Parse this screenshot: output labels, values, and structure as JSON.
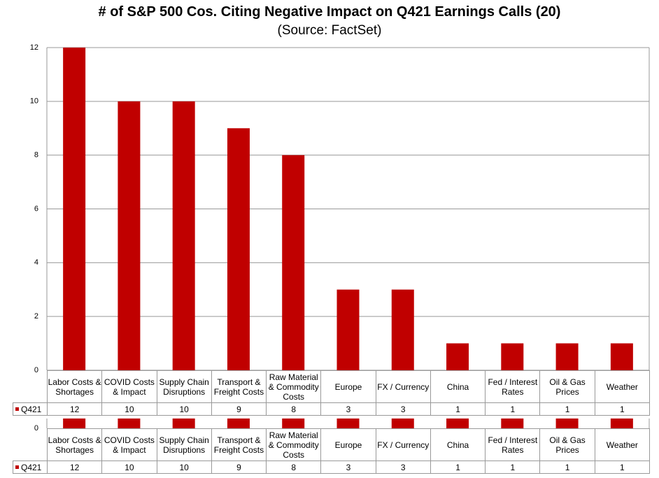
{
  "chart_data": {
    "type": "bar",
    "title": "# of S&P 500 Cos. Citing Negative Impact on Q421 Earnings Calls (20)",
    "subtitle": "(Source: FactSet)",
    "categories": [
      "Labor Costs & Shortages",
      "COVID Costs & Impact",
      "Supply Chain Disruptions",
      "Transport & Freight Costs",
      "Raw Material & Commodity Costs",
      "Europe",
      "FX / Currency",
      "China",
      "Fed / Interest Rates",
      "Oil & Gas Prices",
      "Weather"
    ],
    "series": [
      {
        "name": "Q421",
        "color": "#c00000",
        "values": [
          12,
          10,
          10,
          9,
          8,
          3,
          3,
          1,
          1,
          1,
          1
        ]
      }
    ],
    "ylim": [
      0,
      12
    ],
    "yticks": [
      0,
      2,
      4,
      6,
      8,
      10,
      12
    ],
    "grid": true
  }
}
